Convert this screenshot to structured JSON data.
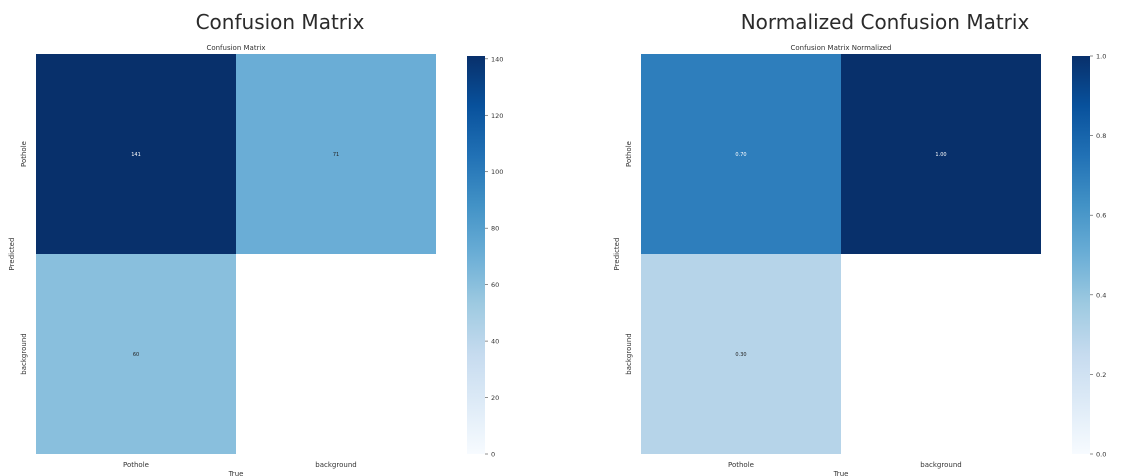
{
  "page": {
    "left_title": "Confusion Matrix",
    "right_title": "Normalized Confusion Matrix"
  },
  "chart_data": [
    {
      "type": "heatmap",
      "title": "Confusion Matrix",
      "xlabel": "True",
      "ylabel": "Predicted",
      "x_categories": [
        "Pothole",
        "background"
      ],
      "y_categories": [
        "Pothole",
        "background"
      ],
      "values": [
        [
          141,
          71
        ],
        [
          60,
          null
        ]
      ],
      "cell_labels": [
        [
          "141",
          "71"
        ],
        [
          "60",
          ""
        ]
      ],
      "colorbar": {
        "min": 0,
        "max": 141,
        "ticks": [
          0,
          20,
          40,
          60,
          80,
          100,
          120,
          140
        ],
        "tick_labels": [
          "0",
          "20",
          "40",
          "60",
          "80",
          "100",
          "120",
          "140"
        ]
      },
      "colormap": [
        "#f7fbff",
        "#deebf7",
        "#c6dbef",
        "#9ecae1",
        "#6baed6",
        "#4292c6",
        "#2171b5",
        "#08519c",
        "#08306b"
      ],
      "grid": false
    },
    {
      "type": "heatmap",
      "title": "Confusion Matrix Normalized",
      "xlabel": "True",
      "ylabel": "Predicted",
      "x_categories": [
        "Pothole",
        "background"
      ],
      "y_categories": [
        "Pothole",
        "background"
      ],
      "values": [
        [
          0.7,
          1.0
        ],
        [
          0.3,
          null
        ]
      ],
      "cell_labels": [
        [
          "0.70",
          "1.00"
        ],
        [
          "0.30",
          ""
        ]
      ],
      "colorbar": {
        "min": 0,
        "max": 1,
        "ticks": [
          0,
          0.2,
          0.4,
          0.6,
          0.8,
          1.0
        ],
        "tick_labels": [
          "0.0",
          "0.2",
          "0.4",
          "0.6",
          "0.8",
          "1.0"
        ]
      },
      "colormap": [
        "#f7fbff",
        "#deebf7",
        "#c6dbef",
        "#9ecae1",
        "#6baed6",
        "#4292c6",
        "#2171b5",
        "#08519c",
        "#08306b"
      ],
      "grid": false
    }
  ]
}
